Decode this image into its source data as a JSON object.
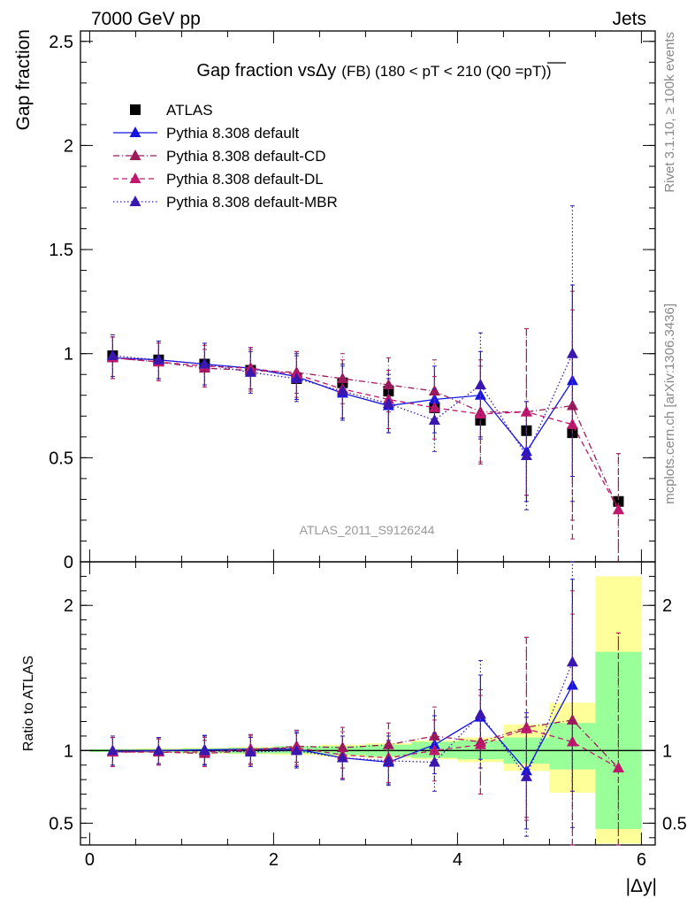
{
  "header": {
    "left": "7000 GeV pp",
    "right": "Jets"
  },
  "side_labels": {
    "rivet": "Rivet 3.1.10, ≥ 100k events",
    "mcplots": "mcplots.cern.ch [arXiv:1306.3436]"
  },
  "chart_data": [
    {
      "type": "scatter",
      "title_main": "Gap fraction vsΔy",
      "title_detail": "(FB) (180 < pT < 210 (Q0 =pT))",
      "ylabel": "Gap fraction",
      "xlabel": "|Δy|",
      "watermark": "ATLAS_2011_S9126244",
      "xlim": [
        -0.1,
        6.15
      ],
      "ylim": [
        0,
        2.55
      ],
      "x_ticks": [
        0,
        2,
        4,
        6
      ],
      "y_ticks": [
        0,
        0.5,
        1,
        1.5,
        2,
        2.5
      ],
      "y_tick_labels": [
        "0",
        "0.5",
        "1",
        "1.5",
        "2",
        "2.5"
      ],
      "x": [
        0.25,
        0.75,
        1.25,
        1.75,
        2.25,
        2.75,
        3.25,
        3.75,
        4.25,
        4.75,
        5.25,
        5.75
      ],
      "series": [
        {
          "name": "ATLAS",
          "color": "#000000",
          "marker": "square",
          "values": [
            0.99,
            0.97,
            0.95,
            0.92,
            0.88,
            0.86,
            0.82,
            0.74,
            0.68,
            0.63,
            0.62,
            0.29
          ],
          "errors": [
            0.01,
            0.01,
            0.01,
            0.01,
            0.01,
            0.02,
            0.02,
            0.02,
            0.02,
            0.02,
            0.02,
            0.02
          ]
        },
        {
          "name": "Pythia 8.308 default",
          "color": "#1515e0",
          "marker": "triangle",
          "line": "solid",
          "values": [
            0.98,
            0.97,
            0.95,
            0.93,
            0.89,
            0.81,
            0.75,
            0.78,
            0.8,
            0.53,
            0.87,
            null
          ],
          "errors": [
            0.1,
            0.09,
            0.1,
            0.1,
            0.11,
            0.13,
            0.13,
            0.16,
            0.21,
            0.24,
            0.46,
            null
          ]
        },
        {
          "name": "Pythia 8.308 default-CD",
          "color": "#9b1a5a",
          "marker": "triangle",
          "line": "dashdot",
          "values": [
            0.98,
            0.96,
            0.93,
            0.92,
            0.91,
            0.88,
            0.85,
            0.82,
            0.72,
            0.72,
            0.75,
            0.25
          ],
          "errors": [
            0.1,
            0.09,
            0.09,
            0.1,
            0.1,
            0.12,
            0.13,
            0.15,
            0.25,
            0.4,
            0.55,
            0.27
          ]
        },
        {
          "name": "Pythia 8.308 default-DL",
          "color": "#c0186c",
          "marker": "triangle",
          "line": "dashed",
          "values": [
            0.98,
            0.96,
            0.94,
            0.93,
            0.9,
            0.83,
            0.78,
            0.74,
            0.71,
            0.72,
            0.66,
            0.25
          ],
          "errors": [
            0.1,
            0.09,
            0.1,
            0.1,
            0.11,
            0.14,
            0.14,
            0.15,
            0.23,
            0.4,
            0.55,
            0.27
          ]
        },
        {
          "name": "Pythia 8.308 default-MBR",
          "color": "#3a18b0",
          "marker": "triangle",
          "line": "dotted",
          "values": [
            0.99,
            0.97,
            0.95,
            0.91,
            0.88,
            0.82,
            0.76,
            0.68,
            0.85,
            0.51,
            1.0,
            null
          ],
          "errors": [
            0.1,
            0.09,
            0.1,
            0.1,
            0.11,
            0.13,
            0.14,
            0.15,
            0.25,
            0.26,
            0.71,
            null
          ]
        }
      ]
    },
    {
      "type": "scatter",
      "ylabel": "Ratio to ATLAS",
      "xlim": [
        -0.1,
        6.15
      ],
      "ylim": [
        0.35,
        2.3
      ],
      "y_ticks": [
        0.5,
        1,
        2
      ],
      "y_tick_labels": [
        "0.5",
        "1",
        "2"
      ],
      "x_tick_labels": [
        "0",
        "2",
        "4",
        "6"
      ],
      "x": [
        0.25,
        0.75,
        1.25,
        1.75,
        2.25,
        2.75,
        3.25,
        3.75,
        4.25,
        4.75,
        5.25,
        5.75
      ],
      "bin_edges": [
        0,
        0.5,
        1,
        1.5,
        2,
        2.5,
        3,
        3.5,
        4,
        4.5,
        5,
        5.5,
        6
      ],
      "band_inner": [
        [
          0.99,
          1.01
        ],
        [
          0.99,
          1.01
        ],
        [
          0.985,
          1.015
        ],
        [
          0.98,
          1.02
        ],
        [
          0.98,
          1.03
        ],
        [
          0.97,
          1.03
        ],
        [
          0.96,
          1.04
        ],
        [
          0.95,
          1.06
        ],
        [
          0.94,
          1.07
        ],
        [
          0.91,
          1.09
        ],
        [
          0.87,
          1.19
        ],
        [
          0.46,
          1.68
        ]
      ],
      "band_outer": [
        [
          0.99,
          1.01
        ],
        [
          0.985,
          1.015
        ],
        [
          0.98,
          1.02
        ],
        [
          0.975,
          1.025
        ],
        [
          0.97,
          1.03
        ],
        [
          0.96,
          1.04
        ],
        [
          0.95,
          1.05
        ],
        [
          0.94,
          1.07
        ],
        [
          0.92,
          1.09
        ],
        [
          0.86,
          1.18
        ],
        [
          0.71,
          1.33
        ],
        [
          0.36,
          2.2
        ]
      ],
      "band_colors": {
        "inner": "#99ff99",
        "outer": "#ffff99"
      },
      "series": [
        {
          "name": "Pythia 8.308 default",
          "color": "#1515e0",
          "line": "solid",
          "values": [
            0.99,
            1.0,
            1.005,
            1.01,
            1.01,
            0.95,
            0.92,
            1.04,
            1.23,
            0.86,
            1.45,
            null
          ],
          "errors": [
            0.1,
            0.09,
            0.1,
            0.1,
            0.12,
            0.15,
            0.15,
            0.2,
            0.29,
            0.4,
            0.73,
            null
          ]
        },
        {
          "name": "Pythia 8.308 default-CD",
          "color": "#9b1a5a",
          "line": "dashdot",
          "values": [
            0.99,
            0.99,
            0.98,
            1.0,
            1.03,
            1.02,
            1.04,
            1.1,
            1.06,
            1.16,
            1.21,
            0.88
          ],
          "errors": [
            0.1,
            0.09,
            0.09,
            0.1,
            0.11,
            0.14,
            0.15,
            0.2,
            0.36,
            0.62,
            0.89,
            0.93
          ]
        },
        {
          "name": "Pythia 8.308 default-DL",
          "color": "#c0186c",
          "line": "dashed",
          "values": [
            0.99,
            0.99,
            0.99,
            1.01,
            1.02,
            0.97,
            0.95,
            1.0,
            1.04,
            1.15,
            1.06,
            0.88
          ],
          "errors": [
            0.1,
            0.09,
            0.1,
            0.1,
            0.12,
            0.16,
            0.17,
            0.21,
            0.34,
            0.63,
            0.88,
            0.93
          ]
        },
        {
          "name": "Pythia 8.308 default-MBR",
          "color": "#3a18b0",
          "line": "dotted",
          "values": [
            1.0,
            1.0,
            1.0,
            0.99,
            1.0,
            0.95,
            0.93,
            0.92,
            1.25,
            0.82,
            1.61,
            null
          ],
          "errors": [
            0.1,
            0.09,
            0.1,
            0.1,
            0.12,
            0.15,
            0.17,
            0.2,
            0.37,
            0.41,
            1.14,
            null
          ]
        }
      ]
    }
  ]
}
